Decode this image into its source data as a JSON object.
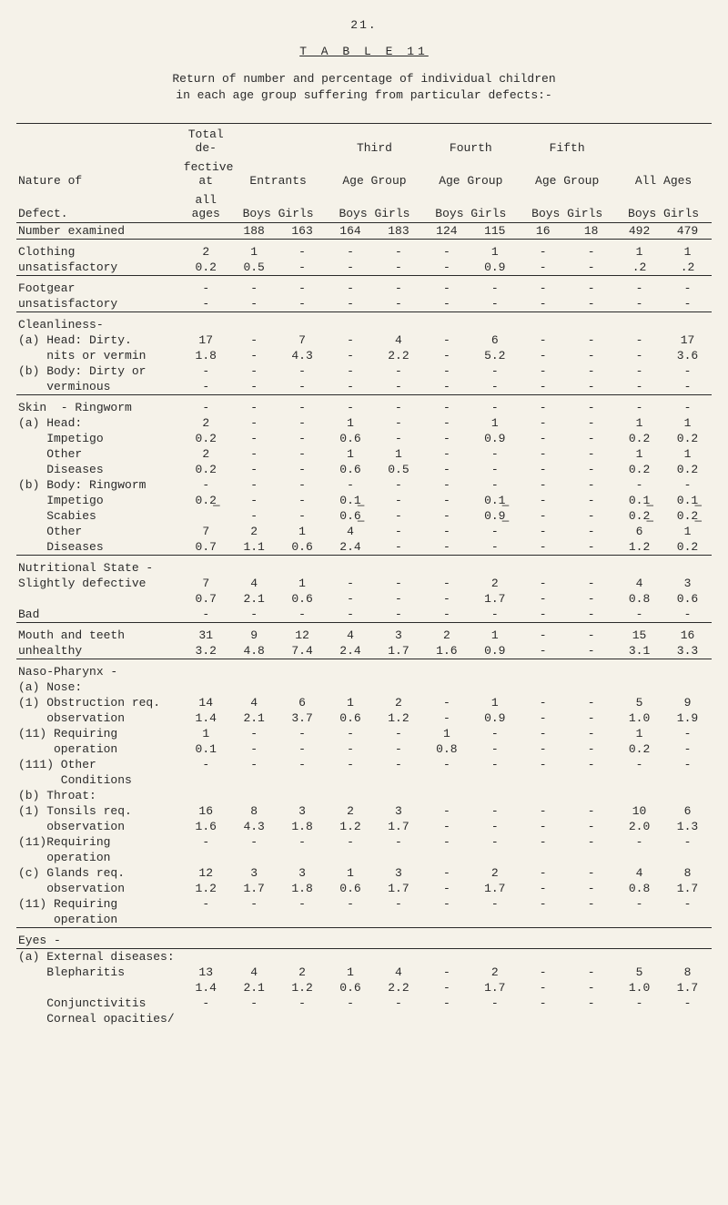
{
  "page_number": "21.",
  "table_label": "T A B L E  11",
  "intro_line1": "Return of number and percentage of individual children",
  "intro_line2": "in each age group suffering from particular defects:-",
  "header": {
    "col0": "Nature of Defect.",
    "g1_a": "Total de-",
    "g1_b": "fective at",
    "g1_c": "all ages",
    "g2_a": "Entrants",
    "g2_b": "Boys Girls",
    "g3_a": "Third",
    "g3_b": "Age Group",
    "g3_c": "Boys Girls",
    "g4_a": "Fourth",
    "g4_b": "Age Group",
    "g4_c": "Boys Girls",
    "g5_a": "Fifth",
    "g5_b": "Age Group",
    "g5_c": "Boys Girls",
    "g6_a": "All Ages",
    "g6_b": "Boys Girls"
  },
  "rows": [
    {
      "label": "Number examined",
      "v": [
        "",
        "188",
        "163",
        "164",
        "183",
        "124",
        "115",
        "16",
        "18",
        "492",
        "479"
      ]
    },
    {
      "label": "Clothing",
      "v": [
        "2",
        "1",
        "-",
        "-",
        "-",
        "-",
        "1",
        "-",
        "-",
        "1",
        "1"
      ],
      "sect": true
    },
    {
      "label": "unsatisfactory",
      "v": [
        "0.2",
        "0.5",
        "-",
        "-",
        "-",
        "-",
        "0.9",
        "-",
        "-",
        ".2",
        ".2"
      ]
    },
    {
      "label": "Footgear",
      "v": [
        "-",
        "-",
        "-",
        "-",
        "-",
        "-",
        "-",
        "-",
        "-",
        "-",
        "-"
      ],
      "sect": true
    },
    {
      "label": "unsatisfactory",
      "v": [
        "-",
        "-",
        "-",
        "-",
        "-",
        "-",
        "-",
        "-",
        "-",
        "-",
        "-"
      ]
    },
    {
      "label": "Cleanliness-",
      "v": [
        "",
        "",
        "",
        "",
        "",
        "",
        "",
        "",
        "",
        "",
        ""
      ],
      "sect": true
    },
    {
      "label": "(a) Head: Dirty.",
      "v": [
        "17",
        "-",
        "7",
        "-",
        "4",
        "-",
        "6",
        "-",
        "-",
        "-",
        "17"
      ]
    },
    {
      "label": "    nits or vermin",
      "v": [
        "1.8",
        "-",
        "4.3",
        "-",
        "2.2",
        "-",
        "5.2",
        "-",
        "-",
        "-",
        "3.6"
      ]
    },
    {
      "label": "(b) Body: Dirty or",
      "v": [
        "-",
        "-",
        "-",
        "-",
        "-",
        "-",
        "-",
        "-",
        "-",
        "-",
        "-"
      ]
    },
    {
      "label": "    verminous",
      "v": [
        "-",
        "-",
        "-",
        "-",
        "-",
        "-",
        "-",
        "-",
        "-",
        "-",
        "-"
      ]
    },
    {
      "label": "Skin  - Ringworm",
      "v": [
        "-",
        "-",
        "-",
        "-",
        "-",
        "-",
        "-",
        "-",
        "-",
        "-",
        "-"
      ],
      "sect": true
    },
    {
      "label": "(a) Head:",
      "v": [
        "2",
        "-",
        "-",
        "1",
        "-",
        "-",
        "1",
        "-",
        "-",
        "1",
        "1"
      ]
    },
    {
      "label": "    Impetigo",
      "v": [
        "0.2",
        "-",
        "-",
        "0.6",
        "-",
        "-",
        "0.9",
        "-",
        "-",
        "0.2",
        "0.2"
      ]
    },
    {
      "label": "    Other",
      "v": [
        "2",
        "-",
        "-",
        "1",
        "1",
        "-",
        "-",
        "-",
        "-",
        "1",
        "1"
      ]
    },
    {
      "label": "    Diseases",
      "v": [
        "0.2",
        "-",
        "-",
        "0.6",
        "0.5",
        "-",
        "-",
        "-",
        "-",
        "0.2",
        "0.2"
      ]
    },
    {
      "label": "(b) Body: Ringworm",
      "v": [
        "-",
        "-",
        "-",
        "-",
        "-",
        "-",
        "-",
        "-",
        "-",
        "-",
        "-"
      ]
    },
    {
      "label": "    Impetigo",
      "v": [
        "0.2̲",
        "-",
        "-",
        "0.1̲",
        "-",
        "-",
        "0.1̲",
        "-",
        "-",
        "0.1̲",
        "0.1̲"
      ]
    },
    {
      "label": "    Scabies",
      "v": [
        "",
        "-",
        "-",
        "0.6̲",
        "-",
        "-",
        "0.9̲",
        "-",
        "-",
        "0.2̲",
        "0.2̲"
      ]
    },
    {
      "label": "    Other",
      "v": [
        "7",
        "2",
        "1",
        "4",
        "-",
        "-",
        "-",
        "-",
        "-",
        "6",
        "1"
      ]
    },
    {
      "label": "    Diseases",
      "v": [
        "0.7",
        "1.1",
        "0.6",
        "2.4",
        "-",
        "-",
        "-",
        "-",
        "-",
        "1.2",
        "0.2"
      ]
    },
    {
      "label": "Nutritional State -",
      "v": [
        "",
        "",
        "",
        "",
        "",
        "",
        "",
        "",
        "",
        "",
        ""
      ],
      "sect": true
    },
    {
      "label": "Slightly defective",
      "v": [
        "7",
        "4",
        "1",
        "-",
        "-",
        "-",
        "2",
        "-",
        "-",
        "4",
        "3"
      ]
    },
    {
      "label": "",
      "v": [
        "0.7",
        "2.1",
        "0.6",
        "-",
        "-",
        "-",
        "1.7",
        "-",
        "-",
        "0.8",
        "0.6"
      ]
    },
    {
      "label": "Bad",
      "v": [
        "-",
        "-",
        "-",
        "-",
        "-",
        "-",
        "-",
        "-",
        "-",
        "-",
        "-"
      ]
    },
    {
      "label": "Mouth and teeth",
      "v": [
        "31",
        "9",
        "12",
        "4",
        "3",
        "2",
        "1",
        "-",
        "-",
        "15",
        "16"
      ],
      "sect": true
    },
    {
      "label": "unhealthy",
      "v": [
        "3.2",
        "4.8",
        "7.4",
        "2.4",
        "1.7",
        "1.6",
        "0.9",
        "-",
        "-",
        "3.1",
        "3.3"
      ]
    },
    {
      "label": "Naso-Pharynx -",
      "v": [
        "",
        "",
        "",
        "",
        "",
        "",
        "",
        "",
        "",
        "",
        ""
      ],
      "sect": true
    },
    {
      "label": "(a) Nose:",
      "v": [
        "",
        "",
        "",
        "",
        "",
        "",
        "",
        "",
        "",
        "",
        ""
      ]
    },
    {
      "label": "(1) Obstruction req.",
      "v": [
        "14",
        "4",
        "6",
        "1",
        "2",
        "-",
        "1",
        "-",
        "-",
        "5",
        "9"
      ]
    },
    {
      "label": "    observation",
      "v": [
        "1.4",
        "2.1",
        "3.7",
        "0.6",
        "1.2",
        "-",
        "0.9",
        "-",
        "-",
        "1.0",
        "1.9"
      ]
    },
    {
      "label": "(11) Requiring",
      "v": [
        "1",
        "-",
        "-",
        "-",
        "-",
        "1",
        "-",
        "-",
        "-",
        "1",
        "-"
      ]
    },
    {
      "label": "     operation",
      "v": [
        "0.1",
        "-",
        "-",
        "-",
        "-",
        "0.8",
        "-",
        "-",
        "-",
        "0.2",
        "-"
      ]
    },
    {
      "label": "(111) Other",
      "v": [
        "-",
        "-",
        "-",
        "-",
        "-",
        "-",
        "-",
        "-",
        "-",
        "-",
        "-"
      ]
    },
    {
      "label": "      Conditions",
      "v": [
        "",
        "",
        "",
        "",
        "",
        "",
        "",
        "",
        "",
        "",
        ""
      ]
    },
    {
      "label": "(b) Throat:",
      "v": [
        "",
        "",
        "",
        "",
        "",
        "",
        "",
        "",
        "",
        "",
        ""
      ]
    },
    {
      "label": "(1) Tonsils req.",
      "v": [
        "16",
        "8",
        "3",
        "2",
        "3",
        "-",
        "-",
        "-",
        "-",
        "10",
        "6"
      ]
    },
    {
      "label": "    observation",
      "v": [
        "1.6",
        "4.3",
        "1.8",
        "1.2",
        "1.7",
        "-",
        "-",
        "-",
        "-",
        "2.0",
        "1.3"
      ]
    },
    {
      "label": "(11)Requiring",
      "v": [
        "-",
        "-",
        "-",
        "-",
        "-",
        "-",
        "-",
        "-",
        "-",
        "-",
        "-"
      ]
    },
    {
      "label": "    operation",
      "v": [
        "",
        "",
        "",
        "",
        "",
        "",
        "",
        "",
        "",
        "",
        ""
      ]
    },
    {
      "label": "(c) Glands req.",
      "v": [
        "12",
        "3",
        "3",
        "1",
        "3",
        "-",
        "2",
        "-",
        "-",
        "4",
        "8"
      ]
    },
    {
      "label": "    observation",
      "v": [
        "1.2",
        "1.7",
        "1.8",
        "0.6",
        "1.7",
        "-",
        "1.7",
        "-",
        "-",
        "0.8",
        "1.7"
      ]
    },
    {
      "label": "(11) Requiring",
      "v": [
        "-",
        "-",
        "-",
        "-",
        "-",
        "-",
        "-",
        "-",
        "-",
        "-",
        "-"
      ]
    },
    {
      "label": "     operation",
      "v": [
        "",
        "",
        "",
        "",
        "",
        "",
        "",
        "",
        "",
        "",
        ""
      ]
    },
    {
      "label": "Eyes -",
      "v": [
        "",
        "",
        "",
        "",
        "",
        "",
        "",
        "",
        "",
        "",
        ""
      ],
      "sect": true
    },
    {
      "label": "(a) External diseases:",
      "v": [
        "",
        "",
        "",
        "",
        "",
        "",
        "",
        "",
        "",
        "",
        ""
      ]
    },
    {
      "label": "    Blepharitis",
      "v": [
        "13",
        "4",
        "2",
        "1",
        "4",
        "-",
        "2",
        "-",
        "-",
        "5",
        "8"
      ]
    },
    {
      "label": "",
      "v": [
        "1.4",
        "2.1",
        "1.2",
        "0.6",
        "2.2",
        "-",
        "1.7",
        "-",
        "-",
        "1.0",
        "1.7"
      ]
    },
    {
      "label": "    Conjunctivitis",
      "v": [
        "-",
        "-",
        "-",
        "-",
        "-",
        "-",
        "-",
        "-",
        "-",
        "-",
        "-"
      ]
    },
    {
      "label": "    Corneal opacities/",
      "v": [
        "",
        "",
        "",
        "",
        "",
        "",
        "",
        "",
        "",
        "",
        ""
      ]
    }
  ],
  "section_break_after": [
    0,
    2,
    4,
    9,
    19,
    23,
    25,
    43
  ]
}
